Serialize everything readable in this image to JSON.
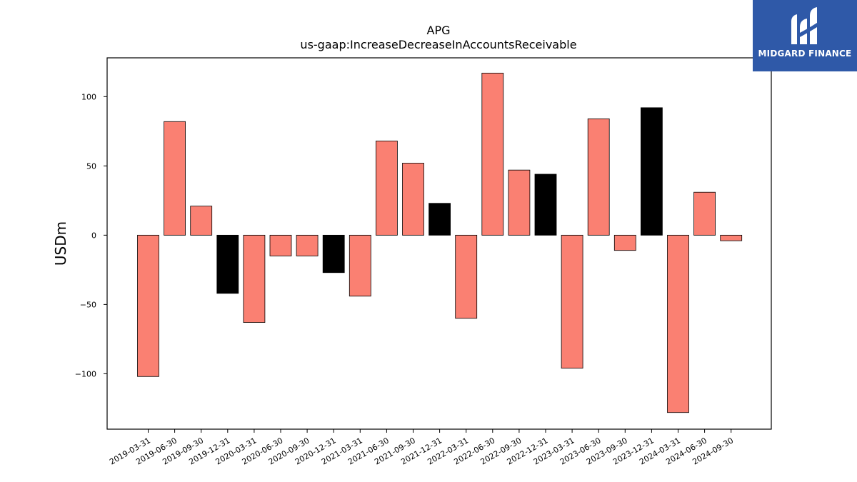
{
  "chart_data": {
    "type": "bar",
    "title": "APG",
    "subtitle": "us-gaap:IncreaseDecreaseInAccountsReceivable",
    "xlabel": "",
    "ylabel": "USDm",
    "ylim": [
      -140,
      128
    ],
    "yticks": [
      -100,
      -50,
      0,
      50,
      100
    ],
    "ytick_labels": [
      "−100",
      "−50",
      "0",
      "50",
      "100"
    ],
    "grid": false,
    "categories": [
      "2019-03-31",
      "2019-06-30",
      "2019-09-30",
      "2019-12-31",
      "2020-03-31",
      "2020-06-30",
      "2020-09-30",
      "2020-12-31",
      "2021-03-31",
      "2021-06-30",
      "2021-09-30",
      "2021-12-31",
      "2022-03-31",
      "2022-06-30",
      "2022-09-30",
      "2022-12-31",
      "2023-03-31",
      "2023-06-30",
      "2023-09-30",
      "2023-12-31",
      "2024-03-31",
      "2024-06-30",
      "2024-09-30"
    ],
    "values": [
      -102,
      82,
      21,
      -42,
      -63,
      -15,
      -15,
      -27,
      -44,
      68,
      52,
      23,
      -60,
      117,
      47,
      44,
      -96,
      84,
      -11,
      92,
      -128,
      31,
      -4
    ],
    "bar_colors": [
      "#fa8072",
      "#fa8072",
      "#fa8072",
      "#000000",
      "#fa8072",
      "#fa8072",
      "#fa8072",
      "#000000",
      "#fa8072",
      "#fa8072",
      "#fa8072",
      "#000000",
      "#fa8072",
      "#fa8072",
      "#fa8072",
      "#000000",
      "#fa8072",
      "#fa8072",
      "#fa8072",
      "#000000",
      "#fa8072",
      "#fa8072",
      "#fa8072"
    ]
  },
  "logo": {
    "text": "MIDGARD FINANCE",
    "background": "#2f59a8",
    "icon": "midgard-logo-icon"
  }
}
